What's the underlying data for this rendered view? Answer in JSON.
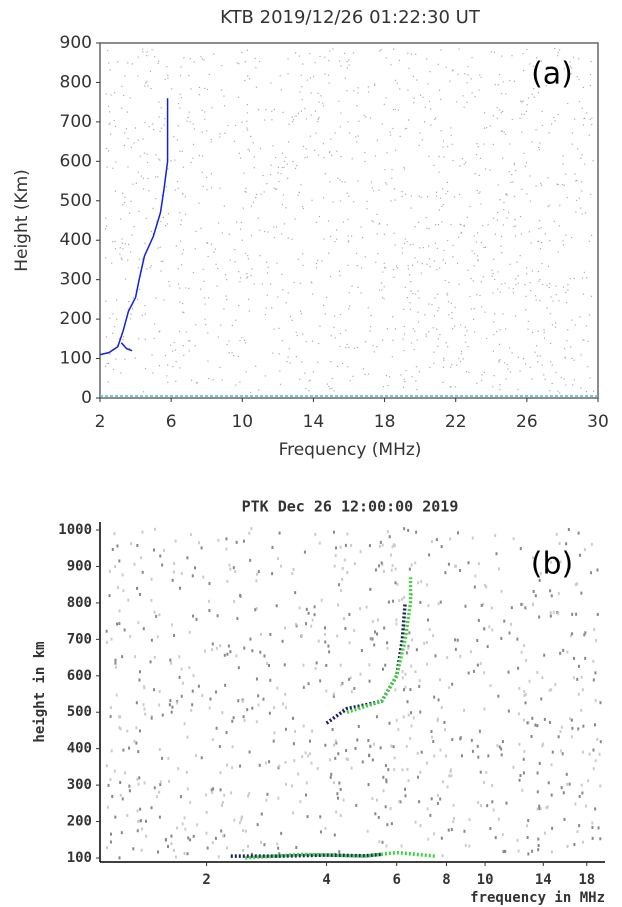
{
  "chart_data": [
    {
      "type": "line",
      "title": "KTB 2019/12/26 01:22:30 UT",
      "annotation": "(a)",
      "x_label": "Frequency (MHz)",
      "y_label": "Height (Km)",
      "xlim": [
        2,
        30
      ],
      "xticks": [
        2,
        6,
        10,
        14,
        18,
        22,
        26,
        30
      ],
      "ylim": [
        0,
        900
      ],
      "yticks": [
        0,
        100,
        200,
        300,
        400,
        500,
        600,
        700,
        800,
        900
      ],
      "series": [
        {
          "color": "#1020e0",
          "x": [
            2.0,
            2.5,
            3.0,
            3.3,
            3.6,
            4.0,
            4.2,
            4.5,
            5.0,
            5.4,
            5.6,
            5.8,
            5.8,
            null,
            3.2,
            3.5,
            3.8
          ],
          "values": [
            110,
            115,
            130,
            170,
            220,
            255,
            300,
            360,
            410,
            470,
            530,
            600,
            760,
            null,
            140,
            125,
            120
          ]
        }
      ]
    },
    {
      "type": "line",
      "title": "PTK Dec 26 12:00:00 2019",
      "annotation": "(b)",
      "x_label": "frequency in MHz",
      "y_label": "height in km",
      "xscale": "log",
      "xlim": [
        1.08,
        20
      ],
      "xticks": [
        2,
        4,
        6,
        8,
        10,
        14,
        18
      ],
      "ylim": [
        89,
        1022
      ],
      "yticks": [
        100,
        200,
        300,
        400,
        500,
        600,
        700,
        800,
        900,
        1000
      ],
      "series": [
        {
          "color": "#1a2060",
          "x": [
            4.0,
            4.5,
            5.0,
            5.5,
            6.0,
            6.2,
            6.3,
            null,
            2.3,
            3.0,
            4.0,
            5.0,
            5.5
          ],
          "values": [
            470,
            510,
            520,
            530,
            600,
            700,
            800,
            null,
            105,
            105,
            108,
            106,
            110
          ]
        },
        {
          "color": "#40d040",
          "x": [
            4.5,
            5.5,
            6.0,
            6.3,
            6.5,
            6.5,
            null,
            2.5,
            3.5,
            5.0,
            6.0,
            7.5
          ],
          "values": [
            500,
            530,
            600,
            700,
            800,
            870,
            null,
            100,
            110,
            105,
            115,
            105
          ]
        }
      ]
    }
  ]
}
